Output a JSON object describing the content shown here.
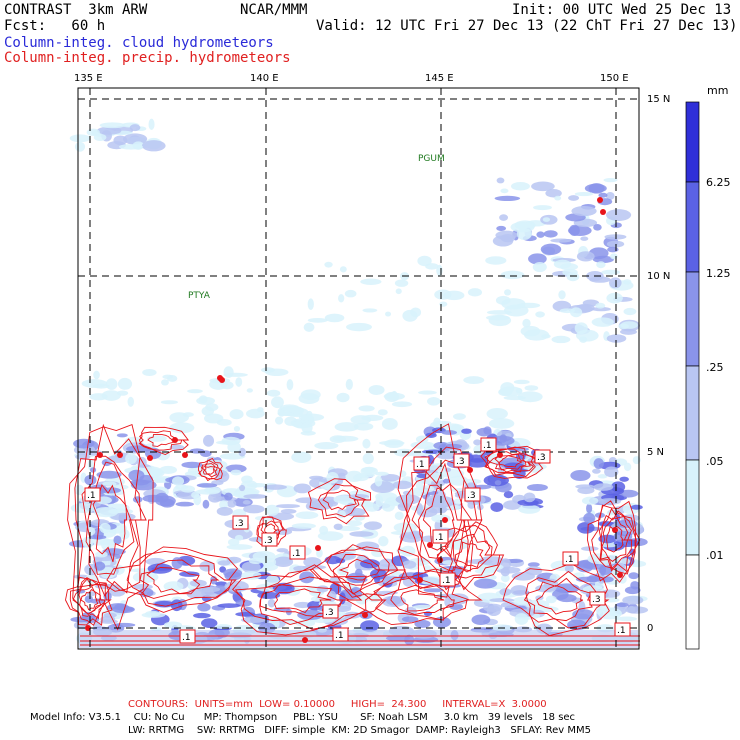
{
  "header": {
    "title": "CONTRAST  3km ARW",
    "center": "NCAR/MMM",
    "init": "Init: 00 UTC Wed 25 Dec 13",
    "fcst": "Fcst:   60 h",
    "valid": "Valid: 12 UTC Fri 27 Dec 13 (22 ChT Fri 27 Dec 13)",
    "field1": "Column-integ. cloud hydrometeors",
    "field2": "Column-integ. precip. hydrometeors"
  },
  "colors": {
    "cloud_text": "#2a2ad8",
    "precip_text": "#e02020",
    "contour": "#e8141a",
    "shade_levels": [
      "#ffffff",
      "#d8f2fb",
      "#b9c6f2",
      "#8a94ea",
      "#5b62e4",
      "#2f2fd8"
    ]
  },
  "map": {
    "lon_labels": [
      "135 E",
      "140 E",
      "145 E",
      "150 E"
    ],
    "lat_labels": [
      "15 N",
      "10 N",
      "5 N",
      "0"
    ],
    "stations": [
      "PGUM",
      "PTYA"
    ]
  },
  "colorbar": {
    "unit": "mm",
    "labels": [
      "6.25",
      "1.25",
      ".25",
      ".05",
      ".01"
    ]
  },
  "contour_labels": [
    ".1",
    ".3",
    ".1",
    ".3",
    ".3",
    ".1",
    ".3",
    ".1",
    ".3",
    ".1",
    ".1",
    ".3",
    ".1",
    ".1",
    ".3",
    ".1",
    ".1"
  ],
  "footer": {
    "contours": "CONTOURS:  UNITS=mm  LOW= 0.10000     HIGH=  24.300     INTERVAL=X  3.0000",
    "model1": "Model Info: V3.5.1    CU: No Cu      MP: Thompson     PBL: YSU       SF: Noah LSM     3.0 km   39 levels   18 sec",
    "model2": "LW: RRTMG    SW: RRTMG   DIFF: simple  KM: 2D Smagor  DAMP: Rayleigh3   SFLAY: Rev MM5"
  }
}
